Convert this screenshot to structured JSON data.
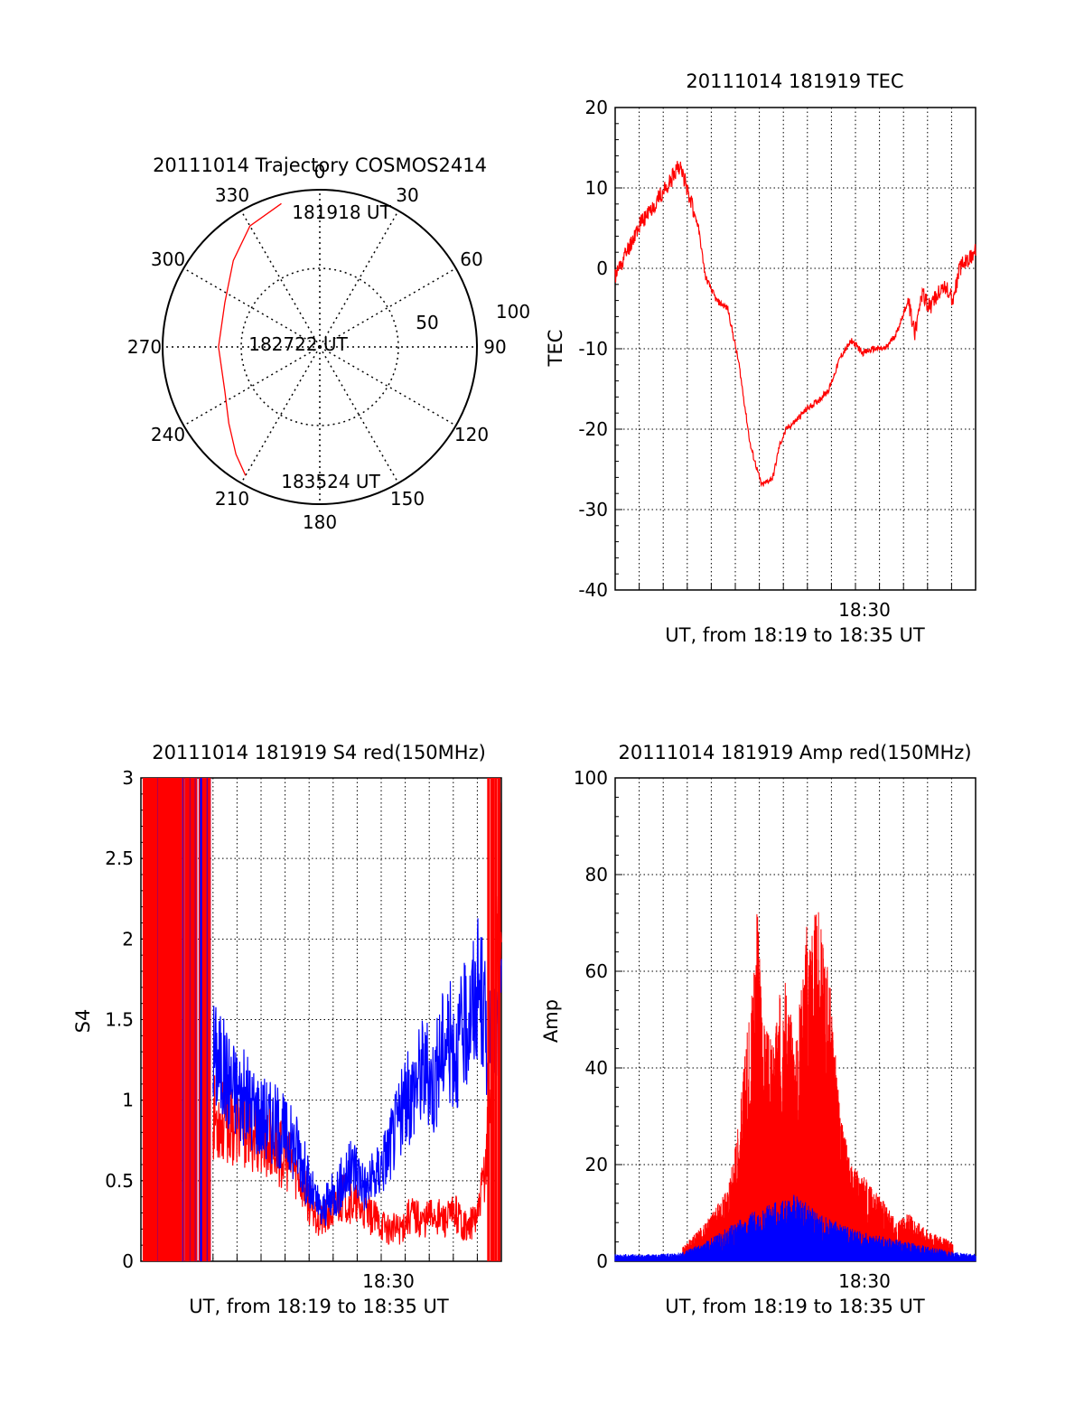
{
  "chart_data": [
    {
      "type": "polar",
      "title": "20111014 Trajectory COSMOS2414",
      "angle_ticks": [
        "0",
        "30",
        "60",
        "90",
        "120",
        "150",
        "180",
        "210",
        "240",
        "270",
        "300",
        "330"
      ],
      "radial_ticks": [
        "50",
        "100"
      ],
      "labels": [
        "181918 UT",
        "182722 UT",
        "183524 UT"
      ],
      "series": [
        {
          "color": "#ff0000",
          "points": [
            {
              "az": 345,
              "el": 5
            },
            {
              "az": 330,
              "el": 10
            },
            {
              "az": 315,
              "el": 20
            },
            {
              "az": 295,
              "el": 30
            },
            {
              "az": 270,
              "el": 32
            },
            {
              "az": 245,
              "el": 30
            },
            {
              "az": 230,
              "el": 22
            },
            {
              "az": 218,
              "el": 12
            },
            {
              "az": 210,
              "el": 5
            }
          ]
        }
      ]
    },
    {
      "type": "line",
      "title": "20111014 181919 TEC",
      "ylabel": "TEC",
      "xlabel": "UT, from 18:19 to 18:35 UT",
      "xtick_label": "18:30",
      "ylim": [
        -40,
        20
      ],
      "yticks": [
        "20",
        "10",
        "0",
        "-10",
        "-20",
        "-30",
        "-40"
      ],
      "grid": true,
      "series": [
        {
          "color": "#ff0000",
          "x_minutes": [
            0,
            0.5,
            1.0,
            1.5,
            2.0,
            2.5,
            2.8,
            3.1,
            3.4,
            3.7,
            4.0,
            4.5,
            5.0,
            5.5,
            6.0,
            6.5,
            7.0,
            7.3,
            7.6,
            8.0,
            8.5,
            9.0,
            9.5,
            10.0,
            10.5,
            11.0,
            11.5,
            12.0,
            12.5,
            13.0,
            13.3,
            13.6,
            14.0,
            14.3,
            14.6,
            15.0,
            15.3,
            15.6,
            16.0
          ],
          "values": [
            -1,
            2,
            5,
            7,
            9,
            11,
            13,
            11,
            8,
            5,
            -1,
            -4,
            -5,
            -12,
            -22,
            -27,
            -26,
            -22,
            -20,
            -19,
            -17.5,
            -16.5,
            -15,
            -11,
            -9,
            -10.5,
            -10,
            -10,
            -8,
            -4,
            -8,
            -3,
            -5,
            -3,
            -2,
            -4,
            0,
            1,
            2
          ]
        }
      ]
    },
    {
      "type": "line",
      "title": "20111014 181919 S4 red(150MHz)",
      "ylabel": "S4",
      "xlabel": "UT, from 18:19 to 18:35 UT",
      "xtick_label": "18:30",
      "ylim": [
        0,
        3
      ],
      "yticks": [
        "3",
        "2.5",
        "2",
        "1.5",
        "1",
        "0.5",
        "0"
      ],
      "grid": true,
      "series": [
        {
          "color": "#0000ff",
          "x_minutes": [
            3.2,
            4.0,
            5.0,
            6.0,
            7.0,
            7.5,
            8.0,
            8.5,
            9.0,
            9.5,
            10.0,
            10.5,
            11.0,
            11.5,
            12.0,
            12.5,
            13.0,
            13.5,
            14.0,
            14.5,
            15.0,
            15.5,
            16.0
          ],
          "values": [
            1.3,
            1.1,
            0.95,
            0.85,
            0.7,
            0.45,
            0.3,
            0.4,
            0.5,
            0.6,
            0.45,
            0.55,
            0.7,
            0.9,
            1.05,
            1.2,
            1.1,
            1.4,
            1.3,
            1.5,
            1.7,
            1.3,
            1.5
          ]
        },
        {
          "color": "#ff0000",
          "x_minutes": [
            3.2,
            4.0,
            5.0,
            6.0,
            7.0,
            7.5,
            8.0,
            8.5,
            9.0,
            9.5,
            10.0,
            10.5,
            11.0,
            11.5,
            12.0,
            12.5,
            13.0,
            13.5,
            14.0,
            14.5,
            15.0,
            15.3,
            15.6,
            16.0
          ],
          "values": [
            0.9,
            0.85,
            0.8,
            0.7,
            0.55,
            0.35,
            0.25,
            0.3,
            0.4,
            0.35,
            0.3,
            0.25,
            0.2,
            0.2,
            0.3,
            0.25,
            0.3,
            0.25,
            0.3,
            0.2,
            0.3,
            0.6,
            1.2,
            2.5
          ]
        }
      ]
    },
    {
      "type": "line",
      "title": "20111014 181919 Amp red(150MHz)",
      "ylabel": "Amp",
      "xlabel": "UT, from 18:19 to 18:35 UT",
      "xtick_label": "18:30",
      "ylim": [
        0,
        100
      ],
      "yticks": [
        "100",
        "80",
        "60",
        "40",
        "20",
        "0"
      ],
      "grid": true,
      "series": [
        {
          "color": "#ff0000",
          "x_minutes": [
            3.0,
            4.0,
            5.0,
            5.5,
            6.0,
            6.3,
            6.6,
            7.0,
            7.5,
            8.0,
            8.5,
            9.0,
            9.5,
            10.0,
            10.5,
            11.0,
            11.5,
            12.0,
            12.5,
            13.0,
            14.0,
            15.0
          ],
          "values": [
            3,
            8,
            15,
            30,
            55,
            74,
            50,
            45,
            62,
            45,
            70,
            73,
            60,
            30,
            20,
            18,
            15,
            12,
            8,
            10,
            6,
            4
          ]
        },
        {
          "color": "#0000ff",
          "x_minutes": [
            0,
            1.0,
            2.0,
            3.0,
            4.0,
            5.0,
            6.0,
            7.0,
            8.0,
            9.0,
            10.0,
            11.0,
            12.0,
            13.0,
            14.0,
            15.0,
            16.0
          ],
          "values": [
            1.5,
            1.5,
            1.5,
            2,
            4,
            7,
            10,
            12,
            14,
            10,
            8,
            6,
            5,
            4,
            3,
            2,
            1.5
          ]
        }
      ]
    }
  ]
}
